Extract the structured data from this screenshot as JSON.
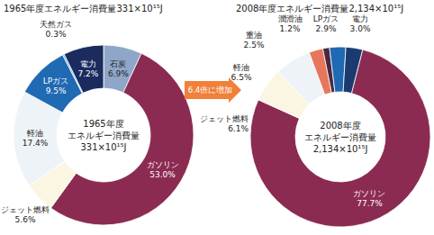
{
  "chart_data": [
    {
      "type": "donut",
      "title": "1965年度エネルギー消費量331×10¹⁵J",
      "center_label": [
        "1965年度",
        "エネルギー消費量",
        "331×10¹⁵J"
      ],
      "categories": [
        "石炭",
        "ガソリン",
        "ジェット燃料",
        "軽油",
        "LPガス",
        "天然ガス",
        "電力"
      ],
      "values": [
        6.9,
        53.0,
        5.6,
        17.4,
        9.5,
        0.3,
        7.2
      ],
      "value_labels": [
        "6.9%",
        "53.0%",
        "5.6%",
        "17.4%",
        "9.5%",
        "0.3%",
        "7.2%"
      ],
      "colors": [
        "#8fa6c9",
        "#8c2b52",
        "#fbf6e2",
        "#eef3f8",
        "#2069b3",
        "#6fa6d8",
        "#1b2b5e"
      ],
      "data_labels": true
    },
    {
      "type": "donut",
      "title": "2008年度エネルギー消費量2,134×10¹⁵J",
      "center_label": [
        "2008年度",
        "エネルギー消費量",
        "2,134×10¹⁵J"
      ],
      "categories": [
        "ガソリン",
        "ジェット燃料",
        "軽油",
        "重油",
        "潤滑油",
        "LPガス",
        "電力"
      ],
      "values": [
        77.7,
        6.1,
        6.5,
        2.5,
        1.2,
        2.9,
        3.0
      ],
      "value_labels": [
        "77.7%",
        "6.1%",
        "6.5%",
        "2.5%",
        "1.2%",
        "2.9%",
        "3.0%"
      ],
      "colors": [
        "#8c2b52",
        "#fbf6e2",
        "#eef3f8",
        "#e8765c",
        "#4b2841",
        "#2069b3",
        "#1b3a70"
      ],
      "data_labels": true
    }
  ],
  "annotation": "6.4倍に増加"
}
